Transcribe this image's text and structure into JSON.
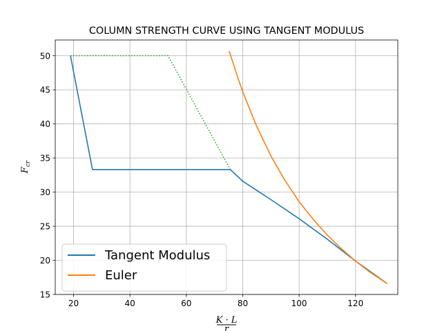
{
  "chart_data": {
    "type": "line",
    "title": "COLUMN STRENGTH CURVE USING TANGENT MODULUS",
    "xlabel": "K·L / r",
    "xlabel_parts": {
      "numerator": "K · L",
      "denominator": "r"
    },
    "ylabel": "F_cr",
    "ylabel_parts": {
      "main": "F",
      "sub": "cr"
    },
    "xlim": [
      13.5,
      135
    ],
    "ylim": [
      15,
      52.3
    ],
    "xticks": [
      20,
      40,
      60,
      80,
      100,
      120
    ],
    "yticks": [
      15,
      20,
      25,
      30,
      35,
      40,
      45,
      50
    ],
    "grid": true,
    "legend_position": "lower-left",
    "series": [
      {
        "name": "Tangent Modulus",
        "color": "#1f77b4",
        "style": "solid",
        "in_legend": true,
        "x": [
          18.9,
          26.7,
          75.6,
          80,
          90,
          100,
          110,
          120,
          131.2
        ],
        "y": [
          50,
          33.3,
          33.3,
          31.6,
          28.9,
          26.1,
          23.1,
          19.9,
          16.6
        ]
      },
      {
        "name": "Euler",
        "color": "#ff7f0e",
        "style": "solid",
        "in_legend": true,
        "x": [
          75.2,
          78,
          80,
          85,
          90,
          95,
          100,
          105,
          110,
          115,
          120,
          125,
          131.2
        ],
        "y": [
          50.7,
          47.1,
          44.7,
          39.6,
          35.3,
          31.7,
          28.6,
          26.0,
          23.7,
          21.7,
          19.9,
          18.3,
          16.6
        ]
      },
      {
        "name": "",
        "color": "#2ca02c",
        "style": "dotted",
        "in_legend": false,
        "x": [
          18.9,
          53.5,
          75.6
        ],
        "y": [
          50,
          50,
          33.3
        ]
      }
    ]
  }
}
